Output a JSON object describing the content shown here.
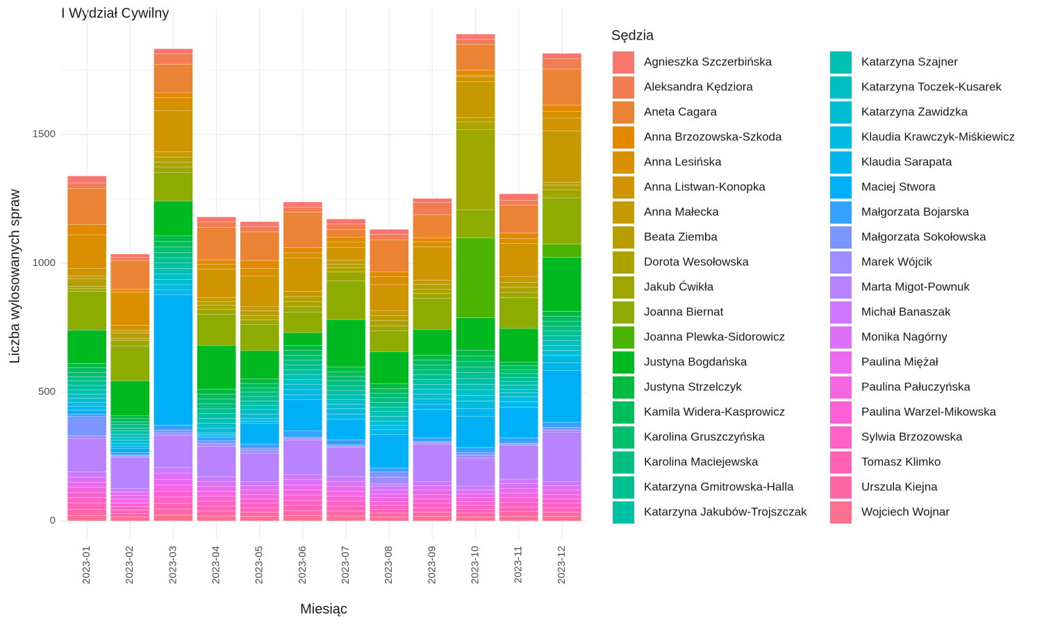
{
  "chart_data": {
    "type": "stacked_bar",
    "title": "I Wydział Cywilny",
    "x_label": "Miesiąc",
    "y_label": "Liczba wylosowanych spraw",
    "legend_title": "Sędzia",
    "legend": "right",
    "grid": true,
    "categories": [
      "2023-01",
      "2023-02",
      "2023-03",
      "2023-04",
      "2023-05",
      "2023-06",
      "2023-07",
      "2023-08",
      "2023-09",
      "2023-10",
      "2023-11",
      "2023-12"
    ],
    "ylim": [
      -70,
      1990
    ],
    "yticks": [
      0,
      500,
      1000,
      1500
    ],
    "yticks_minor": [
      250,
      750,
      1250,
      1750
    ],
    "series": [
      {
        "name": "Agnieszka Szczerbińska",
        "color": "#F8766D",
        "values": [
          28,
          12,
          20,
          20,
          20,
          20,
          20,
          20,
          15,
          20,
          25,
          20
        ]
      },
      {
        "name": "Aleksandra Kędziora",
        "color": "#F27D52",
        "values": [
          20,
          15,
          40,
          20,
          20,
          20,
          20,
          20,
          48,
          20,
          20,
          40
        ]
      },
      {
        "name": "Aneta Cagara",
        "color": "#EB8335",
        "values": [
          140,
          110,
          110,
          128,
          111,
          137,
          30,
          125,
          90,
          100,
          108,
          141
        ]
      },
      {
        "name": "Anna Brzozowska-Szkoda",
        "color": "#E38900",
        "values": [
          40,
          10,
          20,
          15,
          30,
          20,
          20,
          20,
          15,
          20,
          20,
          25
        ]
      },
      {
        "name": "Anna Lesińska",
        "color": "#DA8F00",
        "values": [
          130,
          130,
          50,
          20,
          30,
          20,
          20,
          30,
          20,
          5,
          20,
          25
        ]
      },
      {
        "name": "Anna Listwan-Konopka",
        "color": "#D09400",
        "values": [
          30,
          20,
          160,
          110,
          120,
          130,
          50,
          100,
          130,
          20,
          130,
          50
        ]
      },
      {
        "name": "Anna Małecka",
        "color": "#C59900",
        "values": [
          10,
          10,
          20,
          15,
          15,
          20,
          15,
          20,
          15,
          140,
          20,
          200
        ]
      },
      {
        "name": "Beata Ziemba",
        "color": "#B99E00",
        "values": [
          30,
          20,
          20,
          15,
          20,
          20,
          15,
          20,
          20,
          15,
          20,
          10
        ]
      },
      {
        "name": "Dorota Wesołowska",
        "color": "#ACA300",
        "values": [
          10,
          10,
          20,
          15,
          15,
          20,
          15,
          20,
          15,
          30,
          20,
          20
        ]
      },
      {
        "name": "Jakub Ćwikła",
        "color": "#9DA700",
        "values": [
          10,
          20,
          20,
          20,
          20,
          20,
          35,
          20,
          20,
          312,
          20,
          30
        ]
      },
      {
        "name": "Joanna Biernat",
        "color": "#8DAB00",
        "values": [
          150,
          135,
          110,
          120,
          100,
          80,
          150,
          80,
          120,
          110,
          120,
          180
        ]
      },
      {
        "name": "Joanna Plewka-Sidorowicz",
        "color": "#4CB400",
        "values": [
          0,
          0,
          0,
          0,
          0,
          0,
          0,
          0,
          0,
          310,
          0,
          50
        ]
      },
      {
        "name": "Justyna Bogdańska",
        "color": "#00B81F",
        "values": [
          130,
          135,
          137,
          170,
          110,
          50,
          185,
          125,
          100,
          125,
          130,
          210
        ]
      },
      {
        "name": "Justyna Strzelczyk",
        "color": "#00BA42",
        "values": [
          17,
          12,
          21,
          19,
          17,
          19,
          18,
          18,
          19,
          22,
          15,
          19
        ]
      },
      {
        "name": "Kamila Widera-Kasprowicz",
        "color": "#00BC59",
        "values": [
          17,
          12,
          21,
          19,
          17,
          19,
          18,
          18,
          19,
          22,
          15,
          19
        ]
      },
      {
        "name": "Karolina Gruszczyńska",
        "color": "#00BE6D",
        "values": [
          17,
          12,
          21,
          19,
          17,
          19,
          18,
          18,
          19,
          22,
          15,
          19
        ]
      },
      {
        "name": "Karolina Maciejewska",
        "color": "#00BF80",
        "values": [
          17,
          12,
          21,
          19,
          17,
          19,
          18,
          18,
          19,
          22,
          15,
          19
        ]
      },
      {
        "name": "Katarzyna Gmitrowska-Halla",
        "color": "#00C092",
        "values": [
          17,
          12,
          21,
          19,
          17,
          19,
          18,
          18,
          19,
          22,
          15,
          19
        ]
      },
      {
        "name": "Katarzyna Jakubów-Trojszczak",
        "color": "#00C0A3",
        "values": [
          17,
          12,
          21,
          19,
          17,
          19,
          18,
          18,
          19,
          22,
          15,
          19
        ]
      },
      {
        "name": "Katarzyna Szajner",
        "color": "#00C0B3",
        "values": [
          17,
          12,
          21,
          19,
          17,
          19,
          18,
          18,
          19,
          22,
          15,
          19
        ]
      },
      {
        "name": "Katarzyna Toczek-Kusarek",
        "color": "#00BFC3",
        "values": [
          16,
          12,
          21,
          19,
          17,
          19,
          18,
          18,
          19,
          22,
          15,
          19
        ]
      },
      {
        "name": "Katarzyna Zawidzka",
        "color": "#00BDD2",
        "values": [
          16,
          12,
          21,
          19,
          17,
          19,
          18,
          18,
          19,
          22,
          15,
          19
        ]
      },
      {
        "name": "Klaudia Krawczyk-Miśkiewicz",
        "color": "#00BAE0",
        "values": [
          15,
          10,
          20,
          5,
          10,
          20,
          20,
          15,
          20,
          30,
          20,
          30
        ]
      },
      {
        "name": "Klaudia Sarapata",
        "color": "#00B6EC",
        "values": [
          15,
          10,
          20,
          5,
          10,
          20,
          20,
          20,
          20,
          30,
          20,
          30
        ]
      },
      {
        "name": "Maciej Stwora",
        "color": "#00B0F6",
        "values": [
          15,
          15,
          505,
          5,
          80,
          120,
          80,
          130,
          110,
          120,
          120,
          200
        ]
      },
      {
        "name": "Małgorzata Bojarska",
        "color": "#35A2FF",
        "values": [
          10,
          10,
          20,
          15,
          15,
          25,
          20,
          15,
          15,
          20,
          20,
          20
        ]
      },
      {
        "name": "Małgorzata Sokołowska",
        "color": "#7C96FF",
        "values": [
          75,
          5,
          10,
          10,
          10,
          5,
          5,
          20,
          5,
          10,
          5,
          10
        ]
      },
      {
        "name": "Marek Wójcik",
        "color": "#9F8CFF",
        "values": [
          10,
          5,
          10,
          10,
          10,
          5,
          5,
          25,
          5,
          10,
          5,
          10
        ]
      },
      {
        "name": "Marta Migot-Pownuk",
        "color": "#B983FF",
        "values": [
          130,
          120,
          125,
          120,
          110,
          135,
          114,
          10,
          145,
          110,
          130,
          190
        ]
      },
      {
        "name": "Michał Banaszak",
        "color": "#CD79FF",
        "values": [
          20,
          14,
          23,
          19,
          17,
          20,
          19,
          15,
          17,
          15,
          18,
          17
        ]
      },
      {
        "name": "Monika Nagórny",
        "color": "#DE70F8",
        "values": [
          20,
          14,
          23,
          19,
          17,
          20,
          19,
          15,
          17,
          15,
          18,
          17
        ]
      },
      {
        "name": "Paulina Miężał",
        "color": "#EA69EE",
        "values": [
          20,
          14,
          23,
          19,
          17,
          20,
          19,
          15,
          17,
          15,
          18,
          17
        ]
      },
      {
        "name": "Paulina Pałuczyńska",
        "color": "#F465E2",
        "values": [
          20,
          14,
          23,
          19,
          17,
          20,
          19,
          15,
          17,
          15,
          18,
          17
        ]
      },
      {
        "name": "Paulina Warzel-Mikowska",
        "color": "#FB61D5",
        "values": [
          20,
          14,
          23,
          19,
          17,
          20,
          19,
          15,
          17,
          15,
          18,
          17
        ]
      },
      {
        "name": "Sylwia Brzozowska",
        "color": "#FF61C6",
        "values": [
          20,
          14,
          23,
          19,
          17,
          20,
          19,
          15,
          17,
          15,
          18,
          17
        ]
      },
      {
        "name": "Tomasz Klimko",
        "color": "#FF62B6",
        "values": [
          25,
          14,
          23,
          19,
          17,
          20,
          19,
          15,
          17,
          15,
          18,
          17
        ]
      },
      {
        "name": "Urszula Kiejna",
        "color": "#FF66A5",
        "values": [
          25,
          14,
          23,
          19,
          17,
          20,
          19,
          15,
          17,
          15,
          18,
          17
        ]
      },
      {
        "name": "Wojciech Wojnar",
        "color": "#FD6F8F",
        "values": [
          20,
          14,
          23,
          19,
          17,
          20,
          19,
          15,
          17,
          15,
          18,
          17
        ]
      }
    ]
  }
}
